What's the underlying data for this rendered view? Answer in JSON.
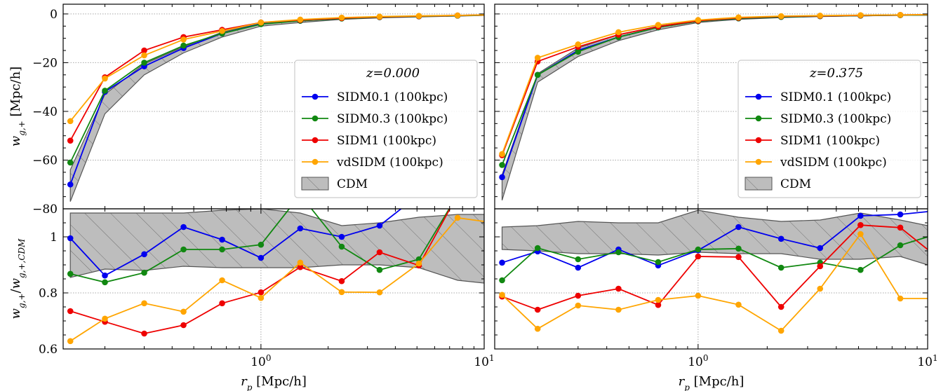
{
  "figure_title": "",
  "colors": {
    "SIDM0.1 (100kpc)": "#0000ee",
    "SIDM0.3 (100kpc)": "#118811",
    "SIDM1 (100kpc)": "#ee0000",
    "vdSIDM (100kpc)": "#ffa500",
    "CDM": "#bdbdbd"
  },
  "chart_data": [
    {
      "type": "line",
      "panel": "top-left",
      "legend_title": "z=0.000",
      "legend_position": "center-right",
      "ylabel": "w_{g,+} [Mpc/h]",
      "xscale": "log",
      "xlim": [
        0.13,
        10
      ],
      "ylim": [
        -80,
        4
      ],
      "yticks": [
        0,
        -20,
        -40,
        -60,
        -80
      ],
      "grid": true,
      "x": [
        0.14,
        0.2,
        0.3,
        0.45,
        0.67,
        1.0,
        1.5,
        2.3,
        3.4,
        5.1,
        7.6,
        10
      ],
      "series": [
        {
          "name": "SIDM0.1 (100kpc)",
          "values": [
            -70,
            -32,
            -21.5,
            -14,
            -8,
            -4,
            -2.8,
            -1.8,
            -1.3,
            -1.0,
            -0.7,
            -0.5
          ]
        },
        {
          "name": "SIDM0.3 (100kpc)",
          "values": [
            -61,
            -31.5,
            -20,
            -13,
            -8,
            -4.2,
            -2.8,
            -1.9,
            -1.3,
            -1.0,
            -0.7,
            -0.5
          ]
        },
        {
          "name": "SIDM1 (100kpc)",
          "values": [
            -52,
            -26,
            -15,
            -9.5,
            -6.5,
            -3.5,
            -2.5,
            -1.7,
            -1.2,
            -0.9,
            -0.6,
            -0.4
          ]
        },
        {
          "name": "vdSIDM (100kpc)",
          "values": [
            -44,
            -26.5,
            -17,
            -10.5,
            -7,
            -3.5,
            -2.3,
            -1.5,
            -1.1,
            -0.8,
            -0.6,
            -0.4
          ]
        }
      ],
      "band": {
        "name": "CDM",
        "upper": [
          -64,
          -33,
          -20.5,
          -13.5,
          -7.5,
          -3.8,
          -2.6,
          -1.7,
          -1.2,
          -0.9,
          -0.6,
          -0.4
        ],
        "lower": [
          -77,
          -41,
          -25,
          -16,
          -9.5,
          -5,
          -3.5,
          -2.2,
          -1.6,
          -1.2,
          -0.9,
          -0.6
        ]
      }
    },
    {
      "type": "line",
      "panel": "top-right",
      "legend_title": "z=0.375",
      "legend_position": "center-right",
      "ylabel": "",
      "xscale": "log",
      "xlim": [
        0.13,
        10
      ],
      "ylim": [
        -80,
        4
      ],
      "yticks": [
        0,
        -20,
        -40,
        -60,
        -80
      ],
      "grid": true,
      "x": [
        0.14,
        0.2,
        0.3,
        0.45,
        0.67,
        1.0,
        1.5,
        2.3,
        3.4,
        5.1,
        7.6,
        10
      ],
      "series": [
        {
          "name": "SIDM0.1 (100kpc)",
          "values": [
            -67,
            -25,
            -15,
            -9.5,
            -5.5,
            -3,
            -1.8,
            -1.2,
            -0.9,
            -0.7,
            -0.5,
            -0.4
          ]
        },
        {
          "name": "SIDM0.3 (100kpc)",
          "values": [
            -62,
            -25,
            -15.5,
            -9.5,
            -5.5,
            -3,
            -1.8,
            -1.2,
            -0.9,
            -0.7,
            -0.5,
            -0.4
          ]
        },
        {
          "name": "SIDM1 (100kpc)",
          "values": [
            -58,
            -19.5,
            -13.5,
            -8.5,
            -5.2,
            -2.8,
            -1.6,
            -1.0,
            -0.8,
            -0.6,
            -0.4,
            -0.3
          ]
        },
        {
          "name": "vdSIDM (100kpc)",
          "values": [
            -57.5,
            -18,
            -12.5,
            -7.5,
            -4.5,
            -2.5,
            -1.4,
            -0.9,
            -0.7,
            -0.5,
            -0.4,
            -0.3
          ]
        }
      ],
      "band": {
        "name": "CDM",
        "upper": [
          -66,
          -24.5,
          -14,
          -8.5,
          -5,
          -2.7,
          -1.6,
          -1.1,
          -0.8,
          -0.6,
          -0.4,
          -0.3
        ],
        "lower": [
          -76.5,
          -28,
          -17.5,
          -11,
          -6.5,
          -3.5,
          -2.2,
          -1.5,
          -1.1,
          -0.8,
          -0.6,
          -0.5
        ]
      }
    },
    {
      "type": "line",
      "panel": "bottom-left",
      "ylabel": "w_{g,+}/w_{g,+,CDM}",
      "xlabel": "r_p [Mpc/h]",
      "xscale": "log",
      "xlim": [
        0.13,
        10
      ],
      "ylim": [
        0.6,
        1.1
      ],
      "yticks": [
        0.6,
        0.8,
        1.0
      ],
      "grid": true,
      "x": [
        0.14,
        0.2,
        0.3,
        0.45,
        0.67,
        1.0,
        1.5,
        2.3,
        3.4,
        5.1,
        7.6,
        10
      ],
      "series": [
        {
          "name": "SIDM0.1 (100kpc)",
          "values": [
            0.995,
            0.862,
            0.938,
            1.035,
            0.99,
            0.925,
            1.03,
            1.0,
            1.04,
            1.15,
            1.2,
            1.25
          ]
        },
        {
          "name": "SIDM0.3 (100kpc)",
          "values": [
            0.868,
            0.838,
            0.872,
            0.955,
            0.955,
            0.972,
            1.15,
            0.965,
            0.882,
            0.92,
            1.15,
            1.2
          ]
        },
        {
          "name": "SIDM1 (100kpc)",
          "values": [
            0.735,
            0.697,
            0.655,
            0.685,
            0.763,
            0.802,
            0.892,
            0.842,
            0.945,
            0.898,
            1.15,
            1.2
          ]
        },
        {
          "name": "vdSIDM (100kpc)",
          "values": [
            0.628,
            0.708,
            0.763,
            0.733,
            0.845,
            0.782,
            0.908,
            0.803,
            0.802,
            0.905,
            1.068,
            1.055
          ]
        }
      ],
      "band": {
        "name": "CDM",
        "upper": [
          1.085,
          1.085,
          1.085,
          1.085,
          1.095,
          1.1,
          1.085,
          1.04,
          1.05,
          1.07,
          1.08,
          1.08
        ],
        "lower": [
          0.855,
          0.885,
          0.88,
          0.895,
          0.89,
          0.89,
          0.89,
          0.9,
          0.9,
          0.89,
          0.845,
          0.835
        ]
      }
    },
    {
      "type": "line",
      "panel": "bottom-right",
      "ylabel": "",
      "xlabel": "r_p [Mpc/h]",
      "xscale": "log",
      "xlim": [
        0.13,
        10
      ],
      "ylim": [
        0.6,
        1.1
      ],
      "yticks": [
        0.6,
        0.8,
        1.0
      ],
      "grid": true,
      "x": [
        0.14,
        0.2,
        0.3,
        0.45,
        0.67,
        1.0,
        1.5,
        2.3,
        3.4,
        5.1,
        7.6,
        10
      ],
      "series": [
        {
          "name": "SIDM0.1 (100kpc)",
          "values": [
            0.908,
            0.948,
            0.89,
            0.955,
            0.898,
            0.952,
            1.035,
            0.993,
            0.96,
            1.075,
            1.08,
            1.09
          ]
        },
        {
          "name": "SIDM0.3 (100kpc)",
          "values": [
            0.845,
            0.96,
            0.92,
            0.945,
            0.91,
            0.955,
            0.958,
            0.89,
            0.908,
            0.882,
            0.97,
            1.0
          ]
        },
        {
          "name": "SIDM1 (100kpc)",
          "values": [
            0.787,
            0.74,
            0.79,
            0.815,
            0.757,
            0.93,
            0.928,
            0.75,
            0.895,
            1.042,
            1.033,
            0.955
          ]
        },
        {
          "name": "vdSIDM (100kpc)",
          "values": [
            0.793,
            0.672,
            0.755,
            0.74,
            0.775,
            0.79,
            0.758,
            0.665,
            0.815,
            1.01,
            0.78,
            0.78
          ]
        }
      ],
      "band": {
        "name": "CDM",
        "upper": [
          1.035,
          1.04,
          1.055,
          1.05,
          1.05,
          1.095,
          1.07,
          1.055,
          1.06,
          1.085,
          1.06,
          1.04
        ],
        "lower": [
          0.955,
          0.95,
          0.94,
          0.94,
          0.935,
          0.945,
          0.94,
          0.94,
          0.92,
          0.92,
          0.93,
          0.9
        ]
      }
    }
  ]
}
